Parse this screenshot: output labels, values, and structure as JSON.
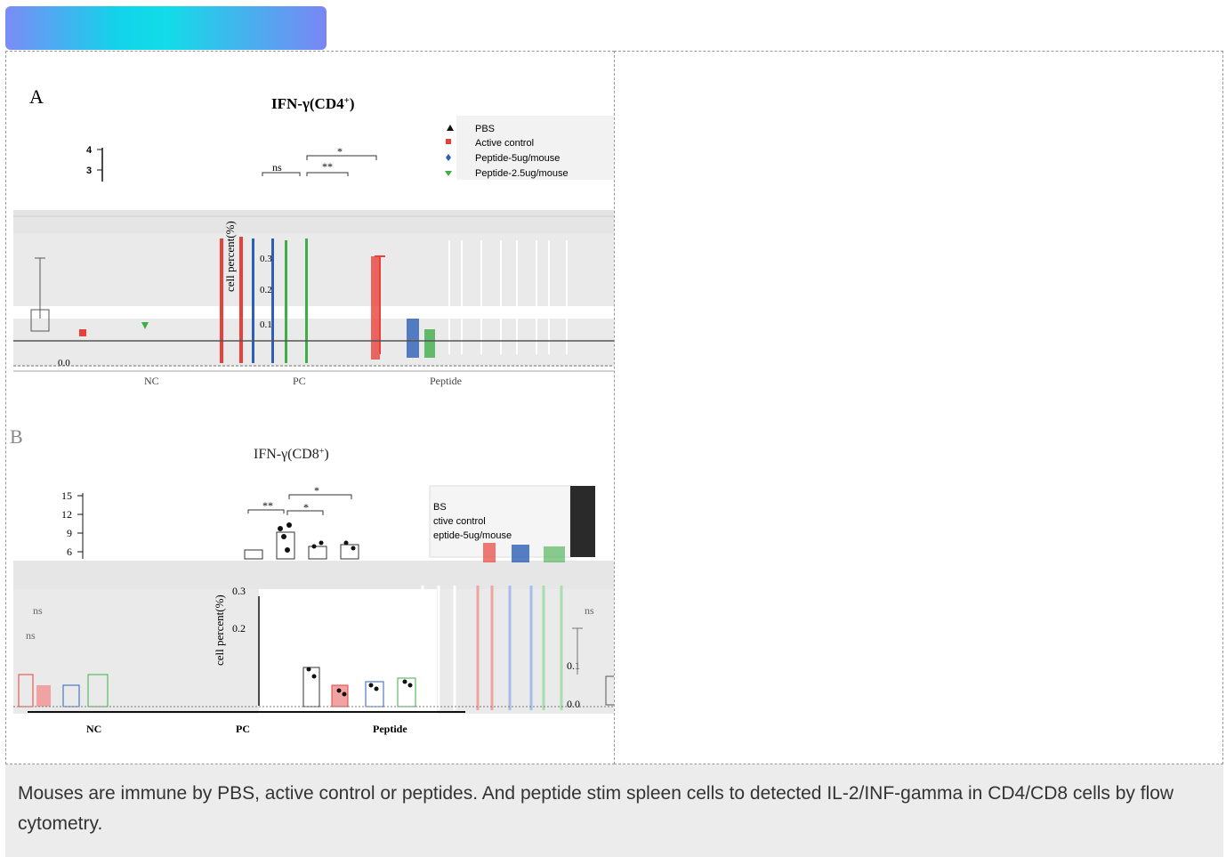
{
  "caption": "Mouses are immune by PBS, active control or peptides. And peptide stim spleen cells to detected IL-2/INF-gamma in CD4/CD8 cells by flow cytometry.",
  "figure": {
    "panel_a": {
      "letter": "A",
      "title": "IFN-γ(CD4",
      "title_sup": "+",
      "title_close": ")",
      "ylabel": "cell percent(%)",
      "yticks_upper": [
        "4",
        "3"
      ],
      "yticks_lower": [
        "0.3",
        "0.2",
        "0.1",
        "0.0"
      ],
      "sig_labels": [
        "ns",
        "**",
        "*"
      ],
      "groups": [
        "NC",
        "PC",
        "Peptide"
      ],
      "legend": [
        "PBS",
        "Active control",
        "Peptide-5ug/mouse",
        "Peptide-2.5ug/mouse"
      ]
    },
    "panel_b": {
      "letter": "B",
      "title": "IFN-γ(CD8",
      "title_sup": "+",
      "title_close": ")",
      "ylabel": "cell percent(%)",
      "yticks_upper": [
        "15",
        "12",
        "9",
        "6"
      ],
      "yticks_lower": [
        "0.3",
        "0.2",
        "0.1",
        "0.0"
      ],
      "sig_labels": [
        "**",
        "*",
        "*",
        "ns",
        "ns",
        "ns"
      ],
      "groups": [
        "NC",
        "PC",
        "Peptide"
      ],
      "legend": [
        "BS",
        "ctive control",
        "eptide-5ug/mouse"
      ]
    }
  },
  "colors": {
    "pbs": "#111111",
    "active_control": "#e8413c",
    "peptide_5": "#2d5fb8",
    "peptide_25": "#3fae49",
    "tab_gradient": [
      "#7b8cf6",
      "#12d3ea",
      "#7a86f4"
    ]
  }
}
